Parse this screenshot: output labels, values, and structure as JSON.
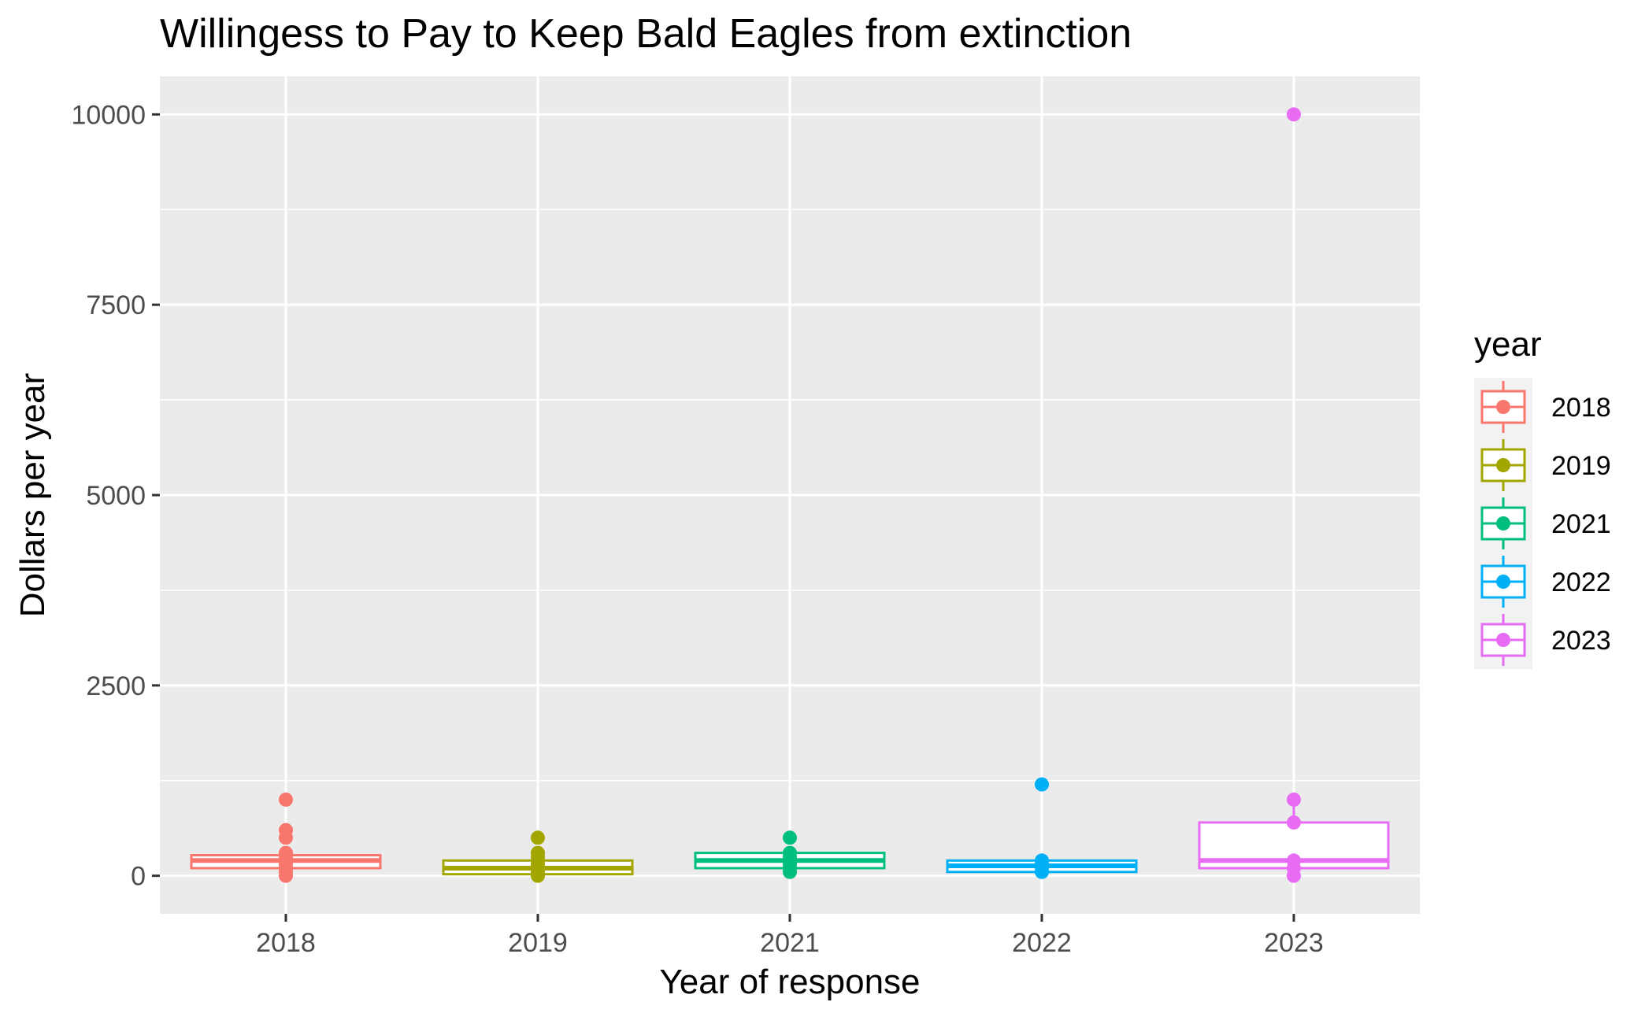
{
  "chart_data": {
    "type": "boxplot",
    "title": "Willingess to Pay to Keep Bald Eagles from extinction",
    "xlabel": "Year of response",
    "ylabel": "Dollars per year",
    "categories": [
      "2018",
      "2019",
      "2021",
      "2022",
      "2023"
    ],
    "yticks": [
      0,
      2500,
      5000,
      7500,
      10000
    ],
    "ylim": [
      -500,
      10500
    ],
    "grid": true,
    "legend": {
      "title": "year",
      "placement": "right",
      "entries": [
        "2018",
        "2019",
        "2021",
        "2022",
        "2023"
      ]
    },
    "colors": [
      "#F8766D",
      "#A3A500",
      "#00BF7D",
      "#00B0F6",
      "#E76BF3"
    ],
    "series": [
      {
        "category": "2018",
        "lower": 100,
        "q1": 100,
        "median": 200,
        "q3": 270,
        "upper": 300,
        "points": [
          0,
          50,
          100,
          150,
          200,
          250,
          300,
          500,
          600,
          1000
        ]
      },
      {
        "category": "2019",
        "lower": 0,
        "q1": 20,
        "median": 100,
        "q3": 200,
        "upper": 200,
        "points": [
          0,
          20,
          50,
          100,
          150,
          200,
          250,
          300,
          500
        ]
      },
      {
        "category": "2021",
        "lower": 100,
        "q1": 100,
        "median": 200,
        "q3": 300,
        "upper": 300,
        "points": [
          50,
          100,
          150,
          200,
          250,
          300,
          500
        ]
      },
      {
        "category": "2022",
        "lower": 50,
        "q1": 50,
        "median": 130,
        "q3": 200,
        "upper": 200,
        "points": [
          50,
          100,
          150,
          200,
          1200
        ]
      },
      {
        "category": "2023",
        "lower": 100,
        "q1": 100,
        "median": 200,
        "q3": 700,
        "upper": 1000,
        "points": [
          0,
          100,
          200,
          700,
          1000,
          10000
        ]
      }
    ]
  }
}
